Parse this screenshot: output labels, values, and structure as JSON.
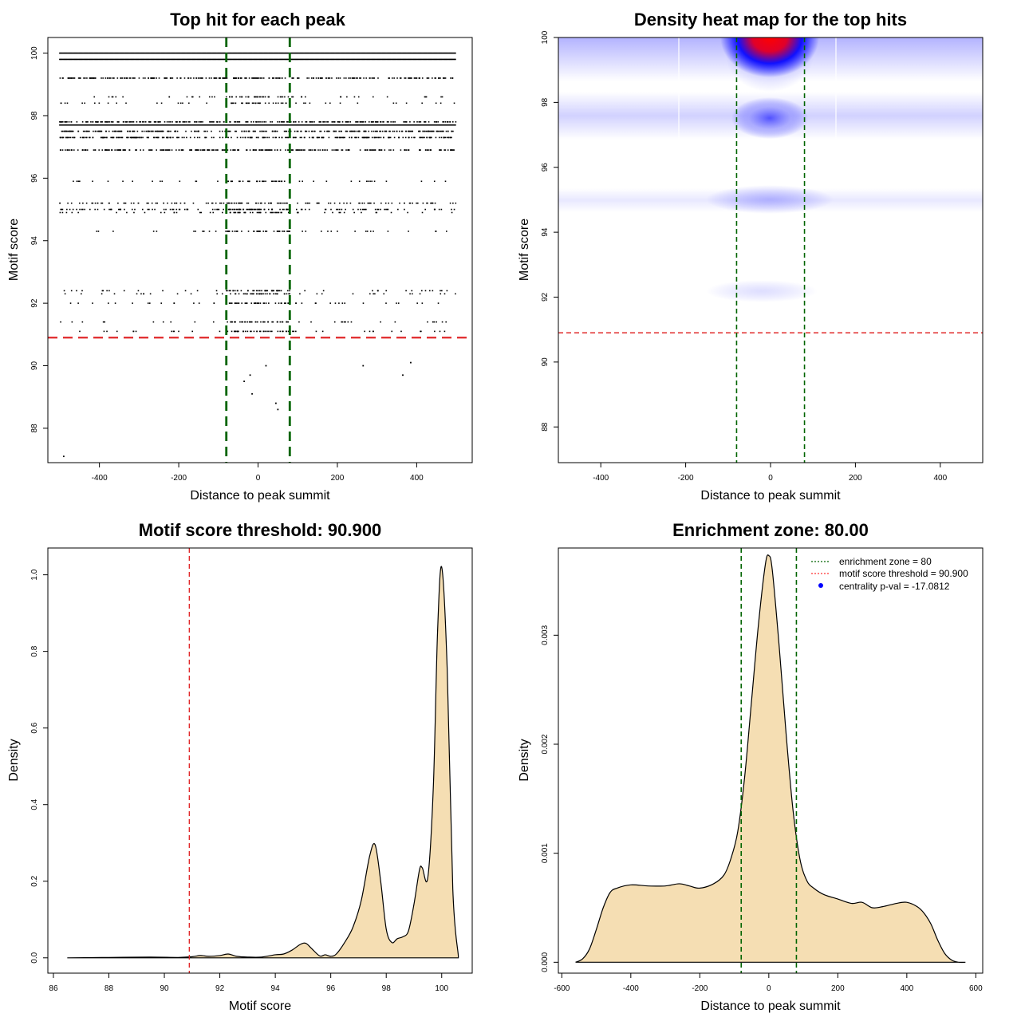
{
  "panels": [
    {
      "id": "scatter",
      "title": "Top hit for each peak",
      "xlabel": "Distance to peak summit",
      "ylabel": "Motif score",
      "xticks": [
        "-400",
        "-200",
        "0",
        "200",
        "400"
      ],
      "yticks": [
        "88",
        "90",
        "92",
        "94",
        "96",
        "98",
        "100"
      ]
    },
    {
      "id": "heatmap",
      "title": "Density heat map for the top hits",
      "xlabel": "Distance to peak summit",
      "ylabel": "Motif score",
      "xticks": [
        "-400",
        "-200",
        "0",
        "200",
        "400"
      ],
      "yticks": [
        "88",
        "90",
        "92",
        "94",
        "96",
        "98",
        "100"
      ]
    },
    {
      "id": "score-density",
      "title": "Motif score threshold: 90.900",
      "xlabel": "Motif score",
      "ylabel": "Density",
      "xticks": [
        "86",
        "88",
        "90",
        "92",
        "94",
        "96",
        "98",
        "100"
      ],
      "yticks": [
        "0.0",
        "0.2",
        "0.4",
        "0.6",
        "0.8",
        "1.0"
      ]
    },
    {
      "id": "distance-density",
      "title": "Enrichment zone: 80.00",
      "xlabel": "Distance to peak summit",
      "ylabel": "Density",
      "xticks": [
        "-600",
        "-400",
        "-200",
        "0",
        "200",
        "400",
        "600"
      ],
      "yticks": [
        "0.000",
        "0.001",
        "0.002",
        "0.003"
      ]
    }
  ],
  "legend": [
    {
      "label": "enrichment zone = 80",
      "color": "#006400",
      "kind": "dotted-line"
    },
    {
      "label": "motif score threshold = 90.900",
      "color": "#ff3030",
      "kind": "dotted-line"
    },
    {
      "label": "centrality p-val = -17.0812",
      "color": "#0000ff",
      "kind": "dot"
    }
  ],
  "colors": {
    "enrichment_lines": "#006400",
    "threshold_line": "#e0282a",
    "density_fill": "#f5deb3",
    "heat_low": "#ffffff",
    "heat_mid": "#0000ff",
    "heat_high": "#ff0000"
  },
  "chart_data": [
    {
      "type": "scatter",
      "title": "Top hit for each peak",
      "xlabel": "Distance to peak summit",
      "ylabel": "Motif score",
      "xlim": [
        -530,
        540
      ],
      "ylim": [
        86.9,
        100.5
      ],
      "enrichment_zone": [
        -80,
        80
      ],
      "score_threshold": 90.9,
      "score_rows": [
        {
          "y": 100.0,
          "density": "solid"
        },
        {
          "y": 99.8,
          "density": "solid"
        },
        {
          "y": 99.2,
          "density": "dense"
        },
        {
          "y": 98.6,
          "density": "sparse"
        },
        {
          "y": 98.4,
          "density": "sparse"
        },
        {
          "y": 97.8,
          "density": "dense"
        },
        {
          "y": 97.7,
          "density": "solid"
        },
        {
          "y": 97.5,
          "density": "dense"
        },
        {
          "y": 97.3,
          "density": "dense"
        },
        {
          "y": 96.9,
          "density": "dense"
        },
        {
          "y": 95.9,
          "density": "sparse"
        },
        {
          "y": 95.2,
          "density": "medium"
        },
        {
          "y": 95.0,
          "density": "medium"
        },
        {
          "y": 94.9,
          "density": "sparse"
        },
        {
          "y": 94.3,
          "density": "sparse"
        },
        {
          "y": 92.4,
          "density": "sparse"
        },
        {
          "y": 92.3,
          "density": "sparse"
        },
        {
          "y": 92.0,
          "density": "sparse"
        },
        {
          "y": 91.4,
          "density": "sparse"
        },
        {
          "y": 91.1,
          "density": "sparse"
        }
      ],
      "outlier_points": [
        {
          "x": -490,
          "y": 87.1
        },
        {
          "x": -35,
          "y": 89.5
        },
        {
          "x": -20,
          "y": 89.7
        },
        {
          "x": -15,
          "y": 89.1
        },
        {
          "x": 20,
          "y": 90.0
        },
        {
          "x": 45,
          "y": 88.8
        },
        {
          "x": 50,
          "y": 88.6
        },
        {
          "x": 265,
          "y": 90.0
        },
        {
          "x": 365,
          "y": 89.7
        },
        {
          "x": 385,
          "y": 90.1
        }
      ]
    },
    {
      "type": "heatmap",
      "title": "Density heat map for the top hits",
      "xlabel": "Distance to peak summit",
      "ylabel": "Motif score",
      "xlim": [
        -500,
        500
      ],
      "ylim": [
        86.9,
        100.0
      ],
      "enrichment_zone": [
        -80,
        80
      ],
      "score_threshold": 90.9,
      "hotspots": [
        {
          "x": 0,
          "y": 100.0,
          "level": "highest"
        },
        {
          "x": 0,
          "y": 97.5,
          "level": "high"
        },
        {
          "x": 0,
          "y": 95.0,
          "level": "low"
        },
        {
          "x": 0,
          "y": 92.3,
          "level": "very-low"
        }
      ]
    },
    {
      "type": "area",
      "title": "Motif score threshold: 90.900",
      "xlabel": "Motif score",
      "ylabel": "Density",
      "xlim": [
        85.8,
        101.1
      ],
      "ylim": [
        -0.04,
        1.07
      ],
      "score_threshold": 90.9,
      "x": [
        86.5,
        88.0,
        89.5,
        90.5,
        91.0,
        91.3,
        91.6,
        92.0,
        92.3,
        92.6,
        93.0,
        93.5,
        94.0,
        94.3,
        94.6,
        94.9,
        95.1,
        95.3,
        95.6,
        95.8,
        96.0,
        96.2,
        96.5,
        96.8,
        97.1,
        97.4,
        97.6,
        97.8,
        98.0,
        98.2,
        98.4,
        98.6,
        98.8,
        99.0,
        99.2,
        99.3,
        99.5,
        99.7,
        99.85,
        100.0,
        100.2,
        100.4,
        100.6
      ],
      "values": [
        0.0,
        0.001,
        0.002,
        0.001,
        0.003,
        0.006,
        0.004,
        0.006,
        0.01,
        0.004,
        0.002,
        0.002,
        0.008,
        0.01,
        0.02,
        0.035,
        0.038,
        0.025,
        0.005,
        0.008,
        0.004,
        0.01,
        0.04,
        0.08,
        0.15,
        0.265,
        0.295,
        0.2,
        0.075,
        0.04,
        0.05,
        0.055,
        0.07,
        0.14,
        0.23,
        0.235,
        0.21,
        0.45,
        0.85,
        1.02,
        0.75,
        0.18,
        0.005
      ]
    },
    {
      "type": "area",
      "title": "Enrichment zone: 80.00",
      "xlabel": "Distance to peak summit",
      "ylabel": "Density",
      "xlim": [
        -610,
        620
      ],
      "ylim": [
        -0.0001,
        0.0038
      ],
      "enrichment_zone": [
        -80,
        80
      ],
      "x": [
        -560,
        -540,
        -520,
        -500,
        -480,
        -460,
        -440,
        -400,
        -350,
        -300,
        -260,
        -230,
        -200,
        -160,
        -130,
        -110,
        -90,
        -70,
        -50,
        -30,
        -10,
        0,
        10,
        30,
        50,
        70,
        90,
        110,
        130,
        160,
        200,
        240,
        270,
        300,
        330,
        370,
        400,
        430,
        450,
        470,
        490,
        510,
        530,
        550,
        570
      ],
      "values": [
        0.0,
        3e-05,
        0.00012,
        0.0003,
        0.0005,
        0.00064,
        0.00068,
        0.00071,
        0.0007,
        0.0007,
        0.00072,
        0.0007,
        0.00068,
        0.00072,
        0.0008,
        0.00095,
        0.0012,
        0.0017,
        0.0024,
        0.0031,
        0.00365,
        0.00373,
        0.0036,
        0.0029,
        0.0021,
        0.0014,
        0.00095,
        0.00075,
        0.00068,
        0.00062,
        0.00058,
        0.00054,
        0.00055,
        0.0005,
        0.00051,
        0.00054,
        0.00055,
        0.00051,
        0.00045,
        0.00035,
        0.0002,
        8e-05,
        2e-05,
        0.0,
        0.0
      ]
    }
  ]
}
